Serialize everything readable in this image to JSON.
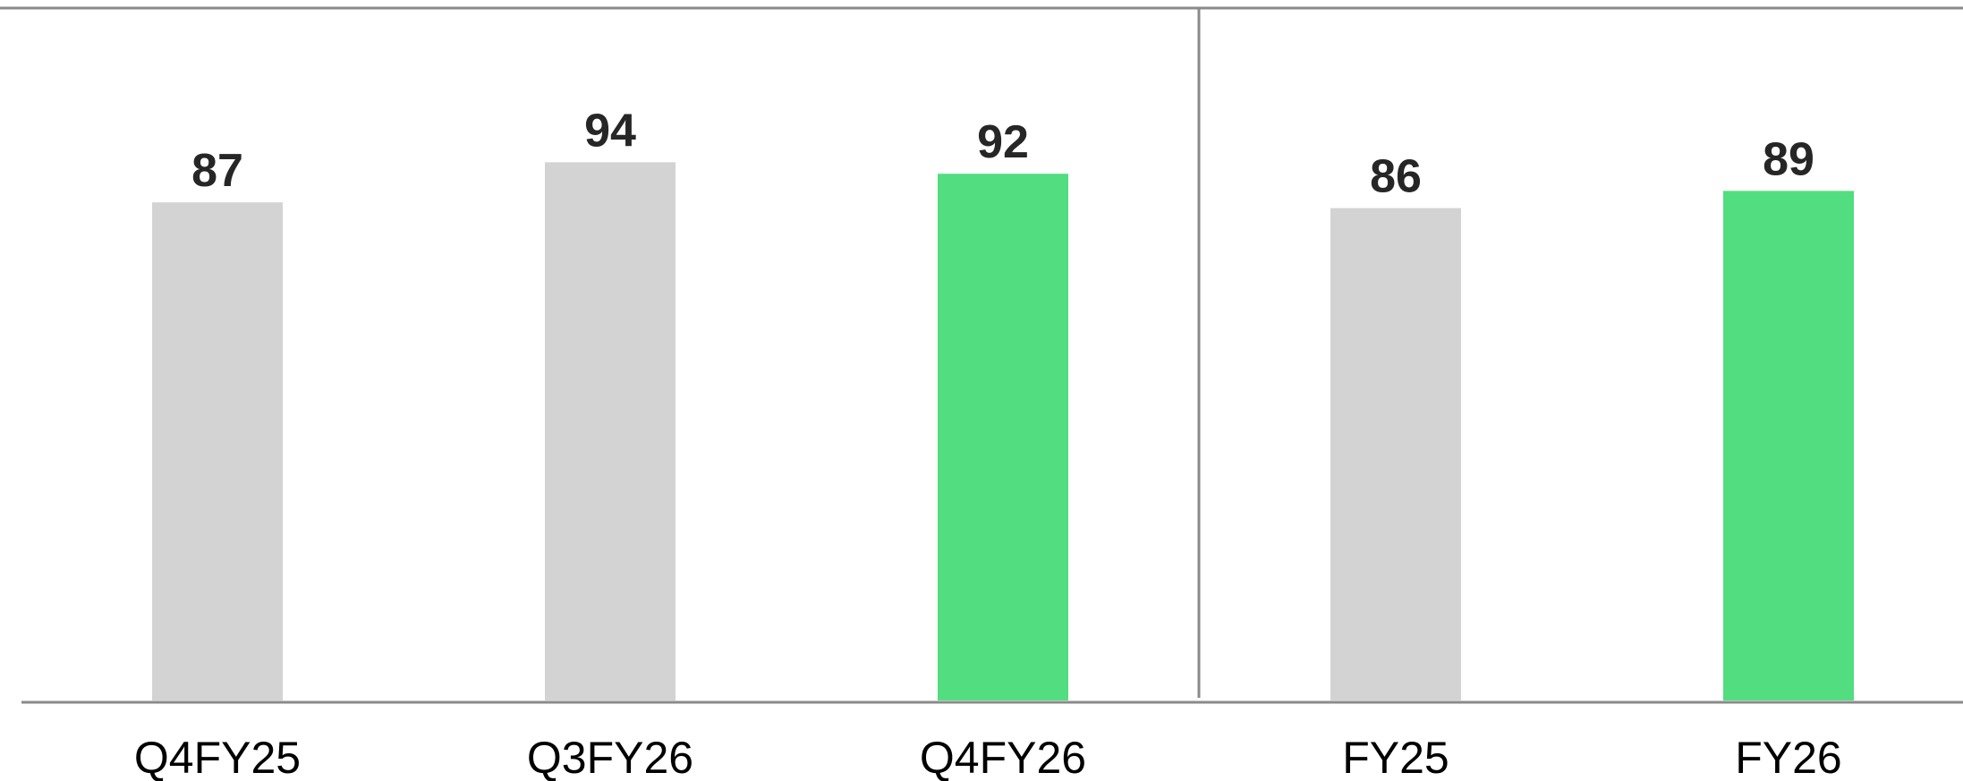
{
  "chart_data": {
    "type": "bar",
    "categories": [
      "Q4FY25",
      "Q3FY26",
      "Q4FY26",
      "FY25",
      "FY26"
    ],
    "values": [
      87,
      94,
      92,
      86,
      89
    ],
    "bar_colors": [
      "#d3d3d3",
      "#d3d3d3",
      "#52dd80",
      "#d3d3d3",
      "#52dd80"
    ],
    "title": "",
    "xlabel": "",
    "ylabel": "",
    "grid": false,
    "legend": "none",
    "group_divider_after_index": 2
  },
  "colors": {
    "highlight": "#52dd80",
    "muted": "#d3d3d3",
    "axis": "#8a8a8a",
    "label_text": "#262626"
  }
}
